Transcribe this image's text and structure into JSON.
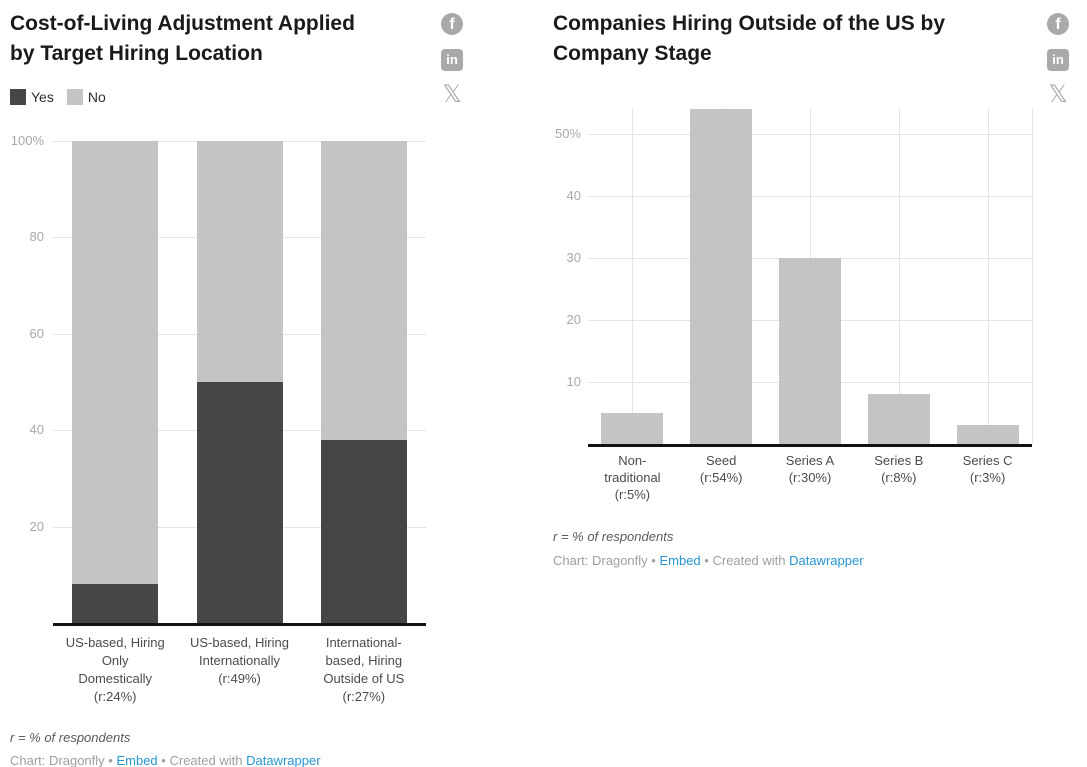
{
  "social": {
    "facebook_glyph": "f",
    "linkedin_glyph": "in",
    "x_glyph": "𝕏"
  },
  "charts": [
    {
      "title": "Cost-of-Living Adjustment Applied\nby Target Hiring Location",
      "legend": [
        {
          "label": "Yes",
          "color": "#464646"
        },
        {
          "label": "No",
          "color": "#c4c4c4"
        }
      ],
      "footnote": "r = % of respondents",
      "credit": {
        "prefix": "Chart: Dragonfly",
        "separator": "•",
        "embed": "Embed",
        "created": "Created with",
        "datawrapper": "Datawrapper"
      }
    },
    {
      "title": "Companies Hiring Outside of the US by\nCompany Stage",
      "legend": [],
      "footnote": "r = % of respondents",
      "credit": {
        "prefix": "Chart: Dragonfly",
        "separator": "•",
        "embed": "Embed",
        "created": "Created with",
        "datawrapper": "Datawrapper"
      }
    }
  ],
  "chart_data": [
    {
      "type": "bar",
      "stacked": true,
      "title": "Cost-of-Living Adjustment Applied by Target Hiring Location",
      "categories": [
        "US-based, Hiring Only Domestically (r:24%)",
        "US-based, Hiring Internationally (r:49%)",
        "International-based, Hiring Outside of US (r:27%)"
      ],
      "series": [
        {
          "name": "Yes",
          "color": "#464646",
          "values": [
            8,
            50,
            38
          ]
        },
        {
          "name": "No",
          "color": "#c4c4c4",
          "values": [
            92,
            50,
            62
          ]
        }
      ],
      "xlabel": "",
      "ylabel": "",
      "ylim": [
        0,
        100
      ],
      "yticks": [
        {
          "value": 100,
          "label": "100%"
        },
        {
          "value": 80,
          "label": "80"
        },
        {
          "value": 60,
          "label": "60"
        },
        {
          "value": 40,
          "label": "40"
        },
        {
          "value": 20,
          "label": "20"
        }
      ],
      "x_label_lines": [
        [
          "US-based, Hiring",
          "Only",
          "Domestically",
          "(r:24%)"
        ],
        [
          "US-based, Hiring",
          "Internationally",
          "(r:49%)"
        ],
        [
          "International-",
          "based, Hiring",
          "Outside of US",
          "(r:27%)"
        ]
      ],
      "grid": "horizontal",
      "legend_position": "top-left"
    },
    {
      "type": "bar",
      "stacked": false,
      "title": "Companies Hiring Outside of the US by Company Stage",
      "categories": [
        "Non-traditional (r:5%)",
        "Seed (r:54%)",
        "Series A (r:30%)",
        "Series B (r:8%)",
        "Series C (r:3%)"
      ],
      "values": [
        5,
        54,
        30,
        8,
        3
      ],
      "bar_color": "#c4c4c4",
      "xlabel": "",
      "ylabel": "",
      "ylim": [
        0,
        54.2
      ],
      "yticks": [
        {
          "value": 50,
          "label": "50%"
        },
        {
          "value": 40,
          "label": "40"
        },
        {
          "value": 30,
          "label": "30"
        },
        {
          "value": 20,
          "label": "20"
        },
        {
          "value": 10,
          "label": "10"
        }
      ],
      "x_label_lines": [
        [
          "Non-",
          "traditional",
          "(r:5%)"
        ],
        [
          "Seed",
          "(r:54%)"
        ],
        [
          "Series A",
          "(r:30%)"
        ],
        [
          "Series B",
          "(r:8%)"
        ],
        [
          "Series C",
          "(r:3%)"
        ]
      ],
      "grid": "both",
      "legend_position": "none"
    }
  ]
}
